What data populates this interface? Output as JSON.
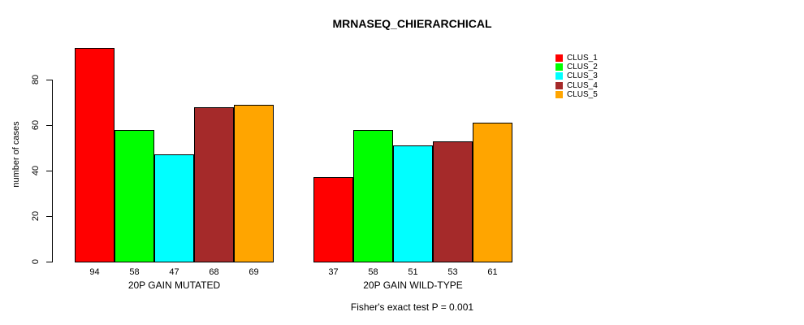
{
  "chart_data": {
    "type": "bar",
    "title": "MRNASEQ_CHIERARCHICAL",
    "ylabel": "number of cases",
    "xlabel": "",
    "footer": "Fisher's exact test P = 0.001",
    "categories": [
      "20P GAIN MUTATED",
      "20P GAIN WILD-TYPE"
    ],
    "series": [
      {
        "name": "CLUS_1",
        "color": "#FF0000",
        "values": [
          94,
          37
        ]
      },
      {
        "name": "CLUS_2",
        "color": "#00FF00",
        "values": [
          58,
          58
        ]
      },
      {
        "name": "CLUS_3",
        "color": "#00FFFF",
        "values": [
          47,
          51
        ]
      },
      {
        "name": "CLUS_4",
        "color": "#A52A2A",
        "values": [
          68,
          53
        ]
      },
      {
        "name": "CLUS_5",
        "color": "#FFA500",
        "values": [
          69,
          61
        ]
      }
    ],
    "yticks": [
      0,
      20,
      40,
      60,
      80
    ],
    "ylim": [
      0,
      96
    ],
    "bar_value_labels": true,
    "grid": false,
    "legend_position": "right",
    "bar_border_color": "#000000",
    "background_color": "#FFFFFF"
  }
}
